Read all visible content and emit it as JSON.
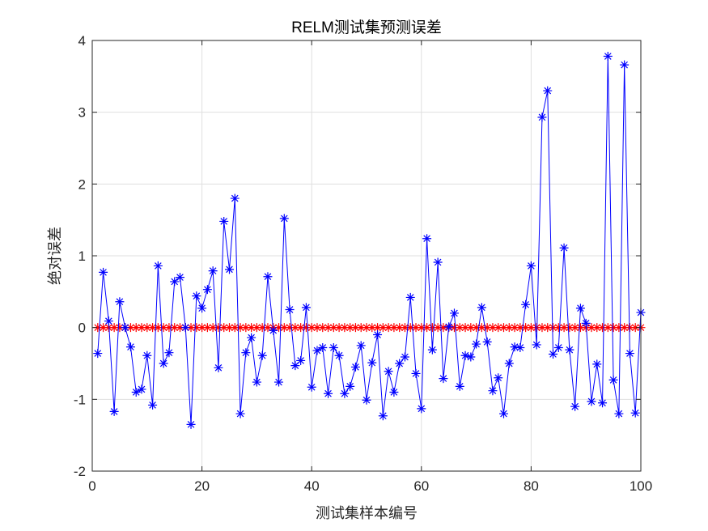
{
  "chart_data": {
    "type": "line",
    "title": "RELM测试集预测误差",
    "xlabel": "测试集样本编号",
    "ylabel": "绝对误差",
    "xlim": [
      0,
      100
    ],
    "ylim": [
      -2,
      4
    ],
    "xticks": [
      0,
      20,
      40,
      60,
      80,
      100
    ],
    "yticks": [
      -2,
      -1,
      0,
      1,
      2,
      3,
      4
    ],
    "grid": true,
    "x": [
      1,
      2,
      3,
      4,
      5,
      6,
      7,
      8,
      9,
      10,
      11,
      12,
      13,
      14,
      15,
      16,
      17,
      18,
      19,
      20,
      21,
      22,
      23,
      24,
      25,
      26,
      27,
      28,
      29,
      30,
      31,
      32,
      33,
      34,
      35,
      36,
      37,
      38,
      39,
      40,
      41,
      42,
      43,
      44,
      45,
      46,
      47,
      48,
      49,
      50,
      51,
      52,
      53,
      54,
      55,
      56,
      57,
      58,
      59,
      60,
      61,
      62,
      63,
      64,
      65,
      66,
      67,
      68,
      69,
      70,
      71,
      72,
      73,
      74,
      75,
      76,
      77,
      78,
      79,
      80,
      81,
      82,
      83,
      84,
      85,
      86,
      87,
      88,
      89,
      90,
      91,
      92,
      93,
      94,
      95,
      96,
      97,
      98,
      99,
      100
    ],
    "series": [
      {
        "color": "#0000ff",
        "marker": "asterisk",
        "values": [
          -0.36,
          0.77,
          0.09,
          -1.17,
          0.36,
          0.0,
          -0.27,
          -0.9,
          -0.86,
          -0.39,
          -1.08,
          0.86,
          -0.5,
          -0.35,
          0.64,
          0.7,
          0.0,
          -1.35,
          0.44,
          0.27,
          0.53,
          0.79,
          -0.56,
          1.48,
          0.81,
          1.8,
          -1.2,
          -0.35,
          -0.14,
          -0.76,
          -0.39,
          0.71,
          -0.04,
          -0.76,
          1.52,
          0.25,
          -0.53,
          -0.46,
          0.28,
          -0.83,
          -0.32,
          -0.28,
          -0.92,
          -0.28,
          -0.39,
          -0.92,
          -0.82,
          -0.55,
          -0.25,
          -1.01,
          -0.49,
          -0.1,
          -1.23,
          -0.61,
          -0.9,
          -0.5,
          -0.41,
          0.42,
          -0.64,
          -1.13,
          1.24,
          -0.31,
          0.91,
          -0.71,
          0.01,
          0.2,
          -0.82,
          -0.39,
          -0.41,
          -0.23,
          0.28,
          -0.2,
          -0.88,
          -0.7,
          -1.2,
          -0.5,
          -0.27,
          -0.28,
          0.32,
          0.86,
          -0.24,
          2.93,
          3.3,
          -0.37,
          -0.28,
          1.11,
          -0.31,
          -1.1,
          0.27,
          0.06,
          -1.03,
          -0.51,
          -1.05,
          3.78,
          -0.73,
          -1.2,
          3.66,
          -0.36,
          -1.19,
          0.21
        ]
      },
      {
        "color": "#ff0000",
        "marker": "asterisk",
        "values": [
          0,
          0,
          0,
          0,
          0,
          0,
          0,
          0,
          0,
          0,
          0,
          0,
          0,
          0,
          0,
          0,
          0,
          0,
          0,
          0,
          0,
          0,
          0,
          0,
          0,
          0,
          0,
          0,
          0,
          0,
          0,
          0,
          0,
          0,
          0,
          0,
          0,
          0,
          0,
          0,
          0,
          0,
          0,
          0,
          0,
          0,
          0,
          0,
          0,
          0,
          0,
          0,
          0,
          0,
          0,
          0,
          0,
          0,
          0,
          0,
          0,
          0,
          0,
          0,
          0,
          0,
          0,
          0,
          0,
          0,
          0,
          0,
          0,
          0,
          0,
          0,
          0,
          0,
          0,
          0,
          0,
          0,
          0,
          0,
          0,
          0,
          0,
          0,
          0,
          0,
          0,
          0,
          0,
          0,
          0,
          0,
          0,
          0,
          0,
          0
        ]
      }
    ]
  }
}
